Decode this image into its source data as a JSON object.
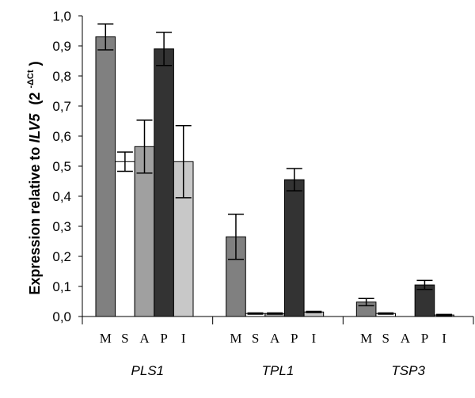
{
  "chart_data": {
    "type": "bar",
    "ylabel": {
      "prefix": "Expression relative to ",
      "gene": "ILV5",
      "unit_open": "(2",
      "unit_sup": "-ΔCt",
      "unit_close": ")"
    },
    "ylim": [
      0,
      1.0
    ],
    "yticks": [
      "0,0",
      "0,1",
      "0,2",
      "0,3",
      "0,4",
      "0,5",
      "0,6",
      "0,7",
      "0,8",
      "0,9",
      "1,0"
    ],
    "groups": [
      "PLS1",
      "TPL1",
      "TSP3"
    ],
    "categories": [
      "M",
      "S",
      "A",
      "P",
      "I"
    ],
    "colors": {
      "M": "#808080",
      "S": "#ffffff",
      "A": "#a0a0a0",
      "P": "#333333",
      "I": "#c8c8c8"
    },
    "series": [
      {
        "group": "PLS1",
        "values": [
          0.93,
          0.515,
          0.565,
          0.89,
          0.515
        ],
        "errors": [
          0.043,
          0.032,
          0.088,
          0.055,
          0.12
        ]
      },
      {
        "group": "TPL1",
        "values": [
          0.265,
          0.01,
          0.01,
          0.455,
          0.015
        ],
        "errors": [
          0.075,
          0.002,
          0.002,
          0.037,
          0.002
        ]
      },
      {
        "group": "TSP3",
        "values": [
          0.048,
          0.01,
          0.0,
          0.105,
          0.005
        ],
        "errors": [
          0.012,
          0.002,
          0.0,
          0.015,
          0.002
        ]
      }
    ]
  }
}
